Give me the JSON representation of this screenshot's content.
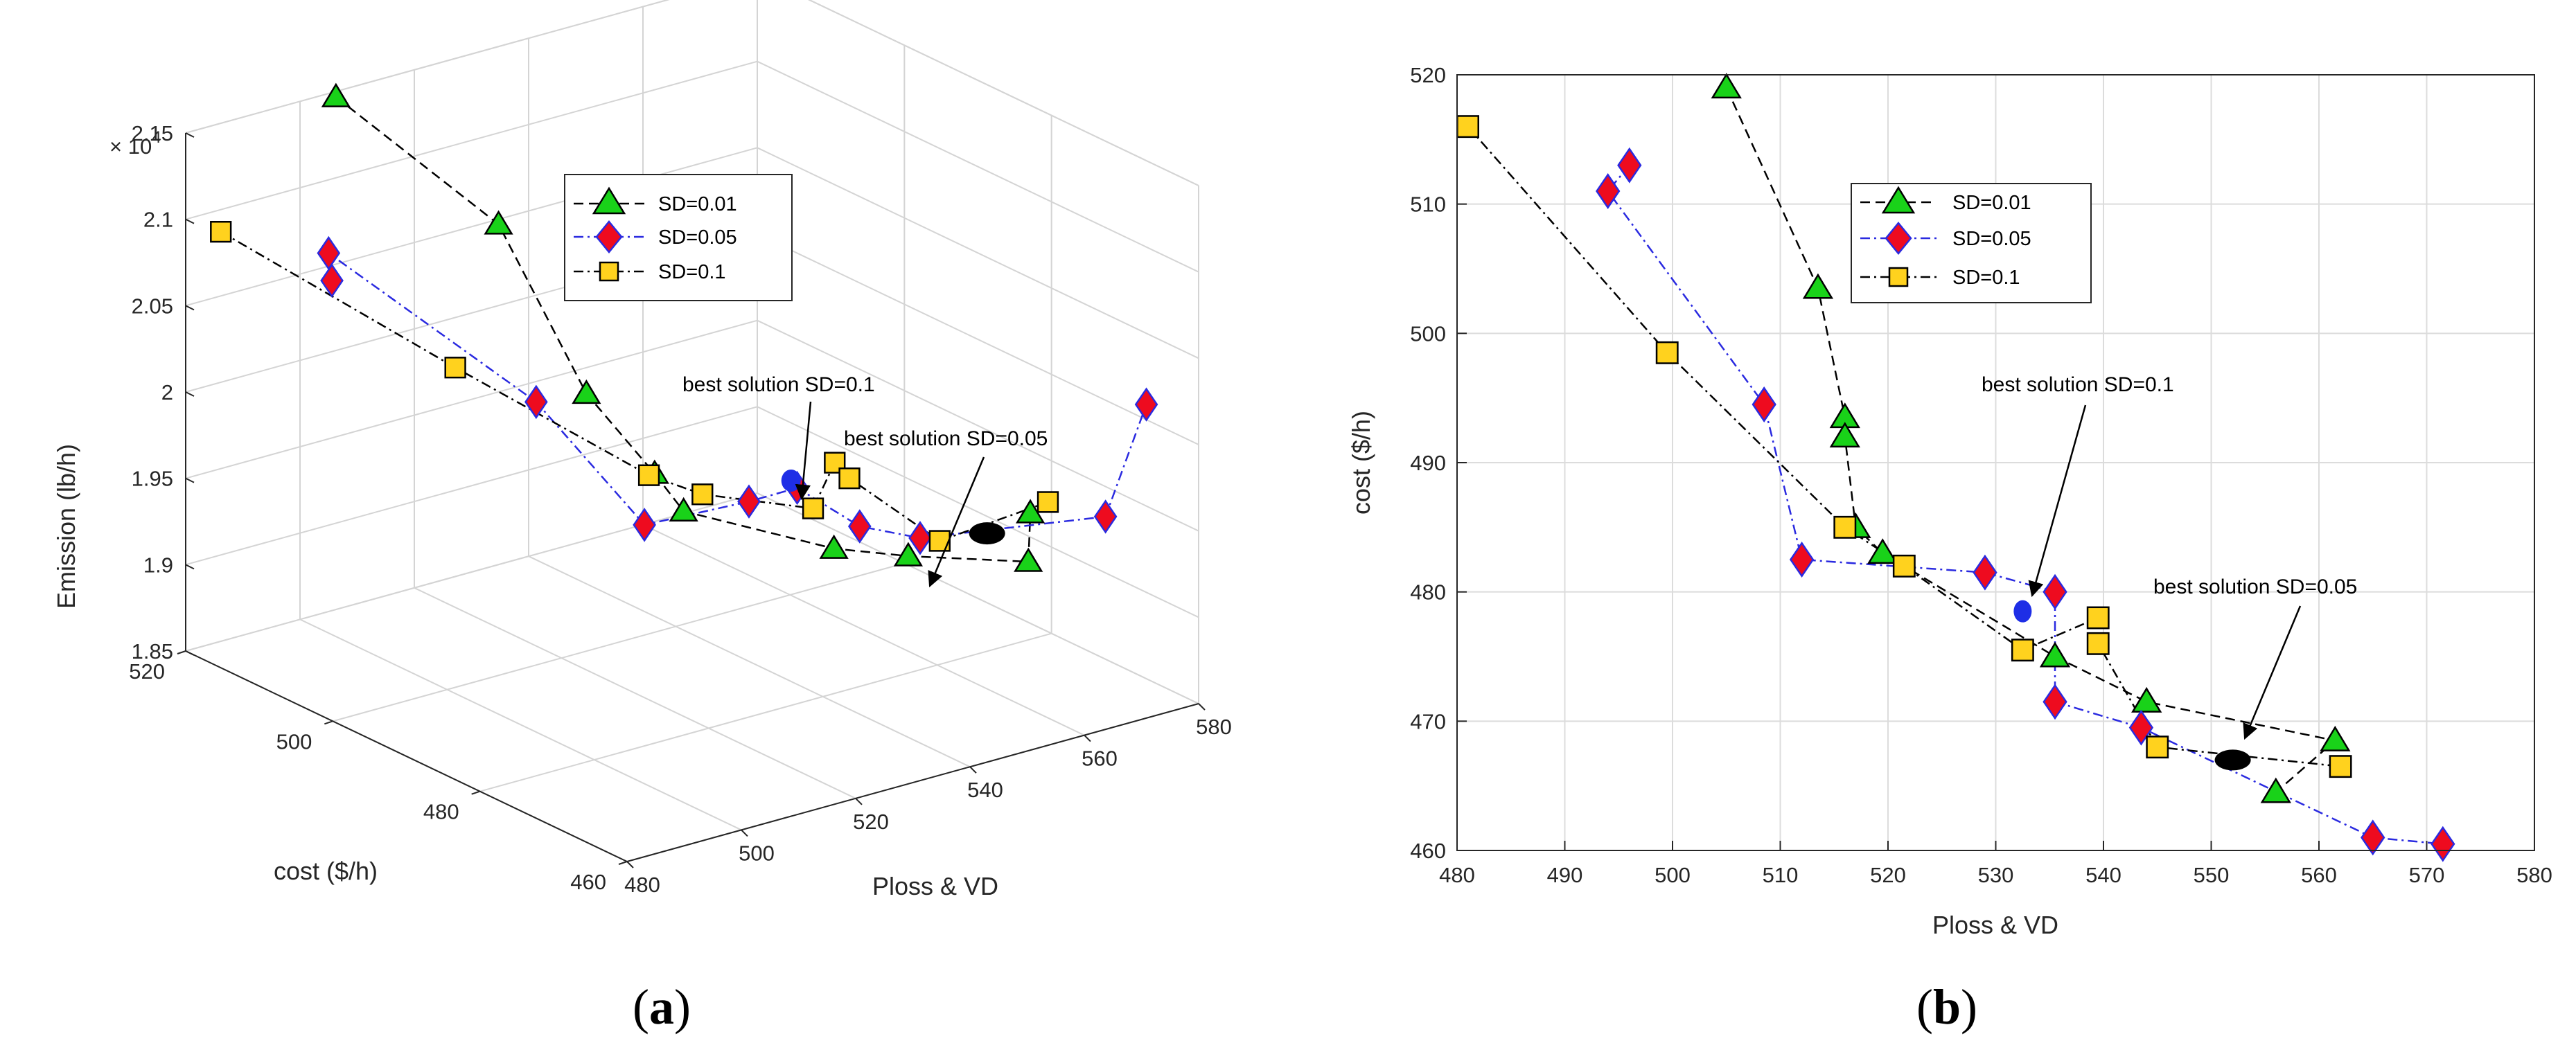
{
  "chart_data": [
    {
      "type": "scatter",
      "projection": "3d",
      "panel_label": "(a)",
      "panel_letter": "a",
      "xlabel": "Ploss & VD",
      "ylabel": "cost ($/h)",
      "zlabel": "Emission (lb/h)",
      "exponent_label": "× 10",
      "exponent_power": "4",
      "xlim": [
        480,
        580
      ],
      "ylim": [
        460,
        520
      ],
      "zlim": [
        1.85,
        2.15
      ],
      "xticks": [
        "480",
        "500",
        "520",
        "540",
        "560",
        "580"
      ],
      "yticks": [
        "460",
        "480",
        "500",
        "520"
      ],
      "zticks": [
        "1.85",
        "1.9",
        "1.95",
        "2",
        "2.05",
        "2.1",
        "2.15"
      ],
      "legend": [
        "SD=0.01",
        "SD=0.05",
        "SD=0.1"
      ],
      "series": [
        {
          "name": "SD=0.01",
          "points": [
            [
              505,
              519,
              2.15
            ],
            [
              513.5,
              503.5,
              2.1
            ],
            [
              516,
              493.5,
              2.02
            ],
            [
              517,
              485,
              1.99
            ],
            [
              519.5,
              483,
              1.97
            ],
            [
              535.5,
              475,
              1.95
            ],
            [
              544,
              471.5,
              1.945
            ],
            [
              556,
              464.5,
              1.945
            ],
            [
              561.5,
              468.5,
              1.96
            ]
          ]
        },
        {
          "name": "SD=0.05",
          "points": [
            [
              494,
              511,
              2.07
            ],
            [
              496,
              513,
              2.08
            ],
            [
              508.5,
              494.5,
              2.02
            ],
            [
              512,
              482.5,
              1.97
            ],
            [
              529,
              481.5,
              1.97
            ],
            [
              535.5,
              480,
              1.975
            ],
            [
              535.5,
              471.5,
              1.97
            ],
            [
              543.5,
              469.5,
              1.96
            ],
            [
              565,
              461,
              1.97
            ],
            [
              571.5,
              460.5,
              2.03
            ]
          ]
        },
        {
          "name": "SD=0.1",
          "points": [
            [
              481,
              516,
              2.1
            ],
            [
              499.5,
              498.5,
              2.04
            ],
            [
              516,
              485,
              1.99
            ],
            [
              521.5,
              482,
              1.98
            ],
            [
              532.5,
              475.5,
              1.975
            ],
            [
              539.5,
              478,
              1.99
            ],
            [
              539.5,
              476,
              1.985
            ],
            [
              545,
              468,
              1.96
            ],
            [
              562,
              466.5,
              1.97
            ]
          ]
        }
      ],
      "markers": [
        {
          "name": "best solution SD=0.1",
          "point": [
            532.5,
            478.5,
            1.985
          ]
        },
        {
          "name": "best solution SD=0.05",
          "point": [
            552,
            467,
            1.96
          ]
        }
      ],
      "annotations": [
        "best solution SD=0.1",
        "best solution SD=0.05"
      ]
    },
    {
      "type": "scatter",
      "panel_label": "(b)",
      "panel_letter": "b",
      "xlabel": "Ploss & VD",
      "ylabel": "cost ($/h)",
      "xlim": [
        480,
        580
      ],
      "ylim": [
        460,
        520
      ],
      "xticks": [
        "480",
        "490",
        "500",
        "510",
        "520",
        "530",
        "540",
        "550",
        "560",
        "570",
        "580"
      ],
      "yticks": [
        "460",
        "470",
        "480",
        "490",
        "500",
        "510",
        "520"
      ],
      "legend": [
        "SD=0.01",
        "SD=0.05",
        "SD=0.1"
      ],
      "series": [
        {
          "name": "SD=0.01",
          "points": [
            [
              505,
              519
            ],
            [
              513.5,
              503.5
            ],
            [
              516,
              493.5
            ],
            [
              516,
              492
            ],
            [
              517,
              485
            ],
            [
              519.5,
              483
            ],
            [
              535.5,
              475
            ],
            [
              544,
              471.5
            ],
            [
              561.5,
              468.5
            ],
            [
              556,
              464.5
            ]
          ]
        },
        {
          "name": "SD=0.05",
          "points": [
            [
              496,
              513
            ],
            [
              494,
              511
            ],
            [
              508.5,
              494.5
            ],
            [
              512,
              482.5
            ],
            [
              529,
              481.5
            ],
            [
              535.5,
              480
            ],
            [
              535.5,
              471.5
            ],
            [
              543.5,
              469.5
            ],
            [
              565,
              461
            ],
            [
              571.5,
              460.5
            ]
          ]
        },
        {
          "name": "SD=0.1",
          "points": [
            [
              481,
              516
            ],
            [
              499.5,
              498.5
            ],
            [
              516,
              485
            ],
            [
              521.5,
              482
            ],
            [
              532.5,
              475.5
            ],
            [
              539.5,
              478
            ],
            [
              539.5,
              476
            ],
            [
              545,
              468
            ],
            [
              562,
              466.5
            ]
          ]
        }
      ],
      "markers": [
        {
          "name": "best solution SD=0.1",
          "point": [
            532.5,
            478.5
          ]
        },
        {
          "name": "best solution SD=0.05",
          "point": [
            552,
            467
          ]
        }
      ],
      "annotations": [
        "best solution SD=0.1",
        "best solution SD=0.05"
      ]
    }
  ],
  "colors": {
    "sd001": "#19d219",
    "sd005": "#ee0b1f",
    "sd01": "#ffd21e",
    "blue_line": "#2a2ae0",
    "best01": "#1e2ee6",
    "best005": "#000000"
  }
}
